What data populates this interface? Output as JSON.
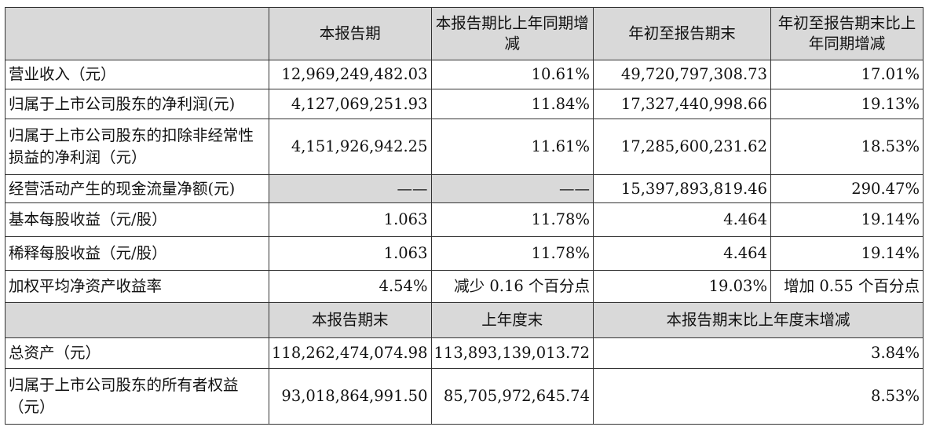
{
  "header1": {
    "col1": "本报告期",
    "col2": "本报告期比上年同期增减",
    "col3": "年初至报告期末",
    "col4": "年初至报告期末比上年同期增减"
  },
  "rows1": [
    {
      "label": "营业收入（元）",
      "v1": "12,969,249,482.03",
      "v2": "10.61%",
      "v3": "49,720,797,308.73",
      "v4": "17.01%"
    },
    {
      "label": "归属于上市公司股东的净利润(元)",
      "v1": "4,127,069,251.93",
      "v2": "11.84%",
      "v3": "17,327,440,998.66",
      "v4": "19.13%"
    },
    {
      "label": "归属于上市公司股东的扣除非经常性损益的净利润（元）",
      "v1": "4,151,926,942.25",
      "v2": "11.61%",
      "v3": "17,285,600,231.62",
      "v4": "18.53%"
    },
    {
      "label": "经营活动产生的现金流量净额(元)",
      "v1": "——",
      "v2": "——",
      "v3": "15,397,893,819.46",
      "v4": "290.47%"
    },
    {
      "label": "基本每股收益（元/股）",
      "v1": "1.063",
      "v2": "11.78%",
      "v3": "4.464",
      "v4": "19.14%"
    },
    {
      "label": "稀释每股收益（元/股）",
      "v1": "1.063",
      "v2": "11.78%",
      "v3": "4.464",
      "v4": "19.14%"
    },
    {
      "label": "加权平均净资产收益率",
      "v1": "4.54%",
      "v2": "减少 0.16 个百分点",
      "v3": "19.03%",
      "v4": "增加 0.55 个百分点"
    }
  ],
  "header2": {
    "col1": "本报告期末",
    "col2": "上年度末",
    "col3": "本报告期末比上年度末增减"
  },
  "rows2": [
    {
      "label": "总资产（元）",
      "v1": "118,262,474,074.98",
      "v2": "113,893,139,013.72",
      "v3": "3.84%"
    },
    {
      "label": "归属于上市公司股东的所有者权益（元）",
      "v1": "93,018,864,991.50",
      "v2": "85,705,972,645.74",
      "v3": "8.53%"
    }
  ]
}
